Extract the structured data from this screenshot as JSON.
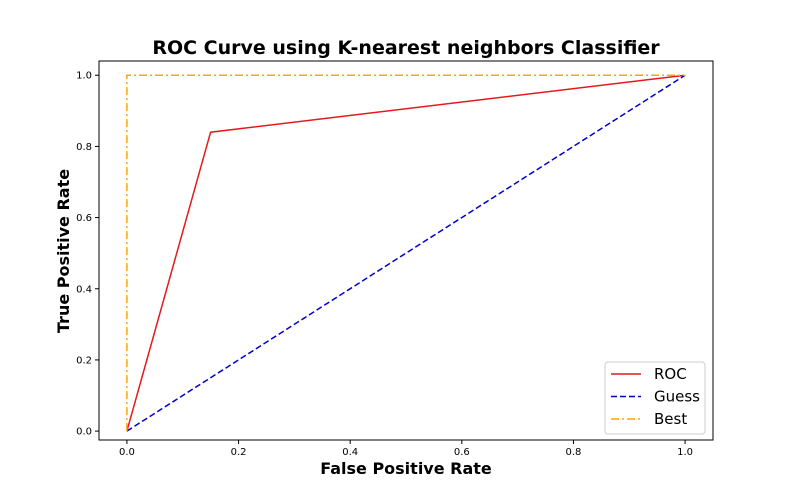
{
  "chart_data": {
    "type": "line",
    "title": "ROC Curve using  K-nearest neighbors Classifier",
    "xlabel": "False Positive Rate",
    "ylabel": "True Positive Rate",
    "xlim": [
      -0.05,
      1.05
    ],
    "ylim": [
      -0.025,
      1.04
    ],
    "xticks": [
      0.0,
      0.2,
      0.4,
      0.6,
      0.8,
      1.0
    ],
    "yticks": [
      0.0,
      0.2,
      0.4,
      0.6,
      0.8,
      1.0
    ],
    "xtick_labels": [
      "0.0",
      "0.2",
      "0.4",
      "0.6",
      "0.8",
      "1.0"
    ],
    "ytick_labels": [
      "0.0",
      "0.2",
      "0.4",
      "0.6",
      "0.8",
      "1.0"
    ],
    "grid": false,
    "legend_position": "bottom-right",
    "series": [
      {
        "name": "ROC",
        "color": "#e31a1c",
        "style": "solid",
        "x": [
          0.0,
          0.15,
          1.0
        ],
        "y": [
          0.0,
          0.84,
          1.0
        ]
      },
      {
        "name": "Guess",
        "color": "#0000cc",
        "style": "dashed",
        "x": [
          0.0,
          1.0
        ],
        "y": [
          0.0,
          1.0
        ]
      },
      {
        "name": "Best",
        "color": "#ffa500",
        "style": "dashdot",
        "x": [
          0.0,
          0.0,
          1.0
        ],
        "y": [
          0.0,
          1.0,
          1.0
        ]
      }
    ]
  }
}
